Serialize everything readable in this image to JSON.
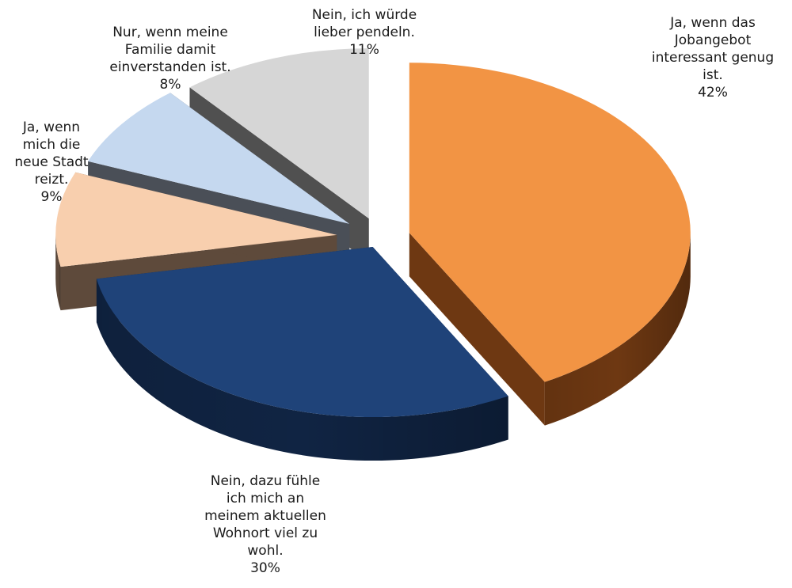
{
  "chart_data": {
    "type": "pie",
    "style": "3d-exploded",
    "title": "",
    "slices": [
      {
        "lines": [
          "Ja, wenn das",
          "Jobangebot",
          "interessant genug",
          "ist."
        ],
        "value": 42,
        "label": "42%",
        "color": "#f29444",
        "side_color": "#6e3812"
      },
      {
        "lines": [
          "Nein, dazu fühle",
          "ich mich an",
          "meinem aktuellen",
          "Wohnort viel zu",
          "wohl."
        ],
        "value": 30,
        "label": "30%",
        "color": "#1f4379",
        "side_color": "#102443"
      },
      {
        "lines": [
          "Ja, wenn",
          "mich die",
          "neue Stadt",
          "reizt."
        ],
        "value": 9,
        "label": "9%",
        "color": "#f8cfae",
        "side_color": "#5e4a3b"
      },
      {
        "lines": [
          "Nur, wenn meine",
          "Familie damit",
          "einverstanden ist."
        ],
        "value": 8,
        "label": "8%",
        "color": "#c5d8ef",
        "side_color": "#4a4f57"
      },
      {
        "lines": [
          "Nein, ich würde",
          "lieber pendeln."
        ],
        "value": 11,
        "label": "11%",
        "color": "#d6d6d6",
        "side_color": "#505050"
      }
    ]
  }
}
